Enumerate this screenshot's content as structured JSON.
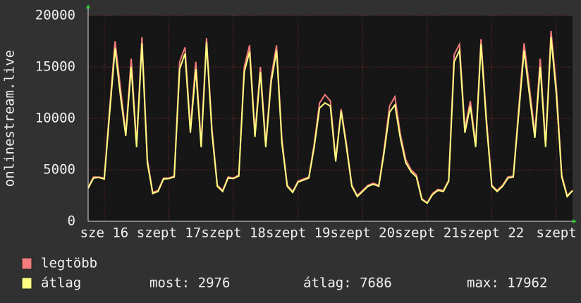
{
  "chart_data": {
    "type": "line",
    "y_label": "onlinestream.live",
    "ylim": [
      0,
      20000
    ],
    "yticks": [
      0,
      5000,
      10000,
      15000,
      20000
    ],
    "grid": true,
    "categories": [
      null,
      null,
      null,
      "sze 16",
      null,
      null,
      null,
      null,
      null,
      null,
      null,
      null,
      null,
      null,
      null,
      "szept 17",
      null,
      null,
      null,
      null,
      null,
      null,
      null,
      null,
      null,
      null,
      null,
      "szept 18",
      null,
      null,
      null,
      null,
      null,
      null,
      null,
      null,
      null,
      null,
      null,
      "szept 19",
      null,
      null,
      null,
      null,
      null,
      null,
      null,
      null,
      null,
      null,
      null,
      "szept 20",
      null,
      null,
      null,
      null,
      null,
      null,
      null,
      null,
      null,
      null,
      null,
      "szept 21",
      null,
      null,
      null,
      null,
      null,
      null,
      null,
      null,
      null,
      null,
      null,
      "szept 22",
      null,
      null,
      null,
      null,
      null,
      null,
      null,
      null,
      null,
      null,
      null,
      "szept",
      null,
      null,
      null
    ],
    "series": [
      {
        "name": "legtöbb",
        "color": "#f47c7c",
        "values": [
          3300,
          4300,
          4300,
          4200,
          11000,
          17500,
          13000,
          8500,
          15800,
          7500,
          17900,
          6000,
          2800,
          3000,
          4200,
          4200,
          4400,
          15500,
          16900,
          9000,
          15500,
          7500,
          17800,
          9000,
          3500,
          3000,
          4300,
          4200,
          4500,
          15000,
          17100,
          8500,
          15000,
          7500,
          14000,
          17100,
          8000,
          3500,
          2900,
          3900,
          4100,
          4300,
          7500,
          11500,
          12300,
          11700,
          6000,
          10900,
          7500,
          3500,
          2500,
          3000,
          3500,
          3700,
          3500,
          7000,
          11200,
          12100,
          8500,
          6000,
          5000,
          4500,
          2200,
          1800,
          2700,
          3100,
          3000,
          4000,
          16200,
          17200,
          9000,
          11700,
          7500,
          17700,
          10000,
          3500,
          3000,
          3500,
          4300,
          4400,
          11000,
          17300,
          13000,
          8500,
          15800,
          7500,
          18500,
          13000,
          4500,
          2500,
          3000
        ]
      },
      {
        "name": "átlag",
        "color": "#ffff80",
        "values": [
          3200,
          4200,
          4250,
          4100,
          10500,
          16800,
          12200,
          8300,
          15000,
          7200,
          17300,
          5700,
          2700,
          2900,
          4100,
          4150,
          4300,
          14800,
          16300,
          8600,
          14800,
          7200,
          17400,
          8600,
          3400,
          2900,
          4200,
          4150,
          4400,
          14500,
          16500,
          8200,
          14500,
          7200,
          13500,
          16600,
          7600,
          3400,
          2800,
          3800,
          4000,
          4200,
          7200,
          11000,
          11500,
          11200,
          5800,
          10700,
          7200,
          3400,
          2400,
          2900,
          3400,
          3600,
          3400,
          6700,
          10600,
          11300,
          8100,
          5700,
          4800,
          4300,
          2100,
          1750,
          2600,
          3000,
          2900,
          3900,
          15500,
          16600,
          8600,
          11200,
          7200,
          17200,
          9500,
          3400,
          2900,
          3400,
          4200,
          4300,
          10500,
          16600,
          12300,
          8100,
          15000,
          7200,
          17900,
          12300,
          4300,
          2400,
          2976
        ]
      }
    ],
    "stats": [
      "most: 2976",
      "átlag: 7686",
      "max: 17962"
    ]
  }
}
